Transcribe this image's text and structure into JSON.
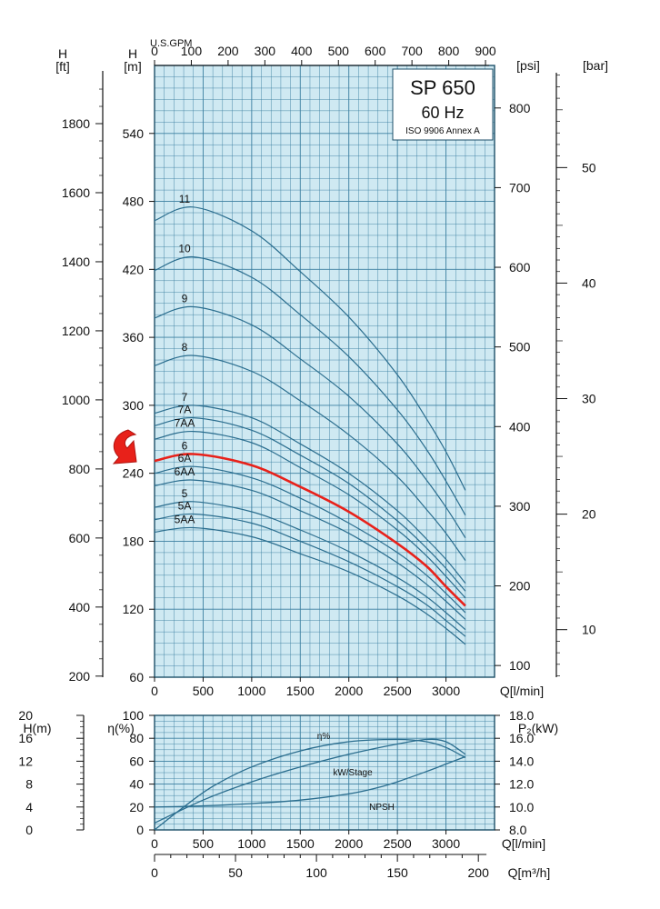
{
  "chart_data": [
    {
      "type": "line",
      "title": "SP 650",
      "subtitle": "60 Hz",
      "note": "ISO 9906 Annex A",
      "xlabel": "Q[l/min]",
      "x_ticks": [
        0,
        500,
        1000,
        1500,
        2000,
        2500,
        3000
      ],
      "xlim": [
        0,
        3500
      ],
      "top_axis": {
        "label": "U.S.GPM",
        "ticks": [
          0,
          100,
          200,
          300,
          400,
          500,
          600,
          700,
          800,
          900
        ]
      },
      "ylabel": "[m]",
      "y_header": "H",
      "ylim": [
        60,
        600
      ],
      "y_ticks": [
        60,
        120,
        180,
        240,
        300,
        360,
        420,
        480,
        540
      ],
      "left_axis_ft": {
        "header": "H",
        "label": "[ft]",
        "ticks": [
          200,
          400,
          600,
          800,
          1000,
          1200,
          1400,
          1600,
          1800
        ]
      },
      "right_axis_psi": {
        "label": "[psi]",
        "ticks": [
          100,
          200,
          300,
          400,
          500,
          600,
          700,
          800
        ]
      },
      "right_axis_bar": {
        "label": "[bar]",
        "ticks": [
          10,
          20,
          30,
          40,
          50
        ]
      },
      "highlight_color": "#e8211a",
      "curve_color": "#2a6d8e",
      "grid_color": "#3b7fa0",
      "background_color": "#cfe9f2",
      "grid": true,
      "highlighted_series": "6",
      "series": [
        {
          "name": "11",
          "x": [
            0,
            400,
            1000,
            1500,
            2000,
            2500,
            2800,
            3000,
            3200
          ],
          "y": [
            463,
            475,
            454,
            418,
            378,
            327,
            288,
            259,
            225
          ]
        },
        {
          "name": "10",
          "x": [
            0,
            400,
            1000,
            1500,
            2000,
            2500,
            2800,
            3000,
            3200
          ],
          "y": [
            419,
            431,
            413,
            380,
            343,
            296,
            261,
            233,
            203
          ]
        },
        {
          "name": "9",
          "x": [
            0,
            400,
            1000,
            1500,
            2000,
            2500,
            2800,
            3000,
            3200
          ],
          "y": [
            377,
            387,
            371,
            341,
            308,
            266,
            234,
            210,
            183
          ]
        },
        {
          "name": "8",
          "x": [
            0,
            400,
            1000,
            1500,
            2000,
            2500,
            2800,
            3000,
            3200
          ],
          "y": [
            335,
            344,
            330,
            304,
            274,
            237,
            208,
            187,
            163
          ]
        },
        {
          "name": "7",
          "x": [
            0,
            400,
            1000,
            1500,
            2000,
            2500,
            2800,
            3000,
            3200
          ],
          "y": [
            293,
            300,
            289,
            266,
            240,
            207,
            182,
            164,
            143
          ]
        },
        {
          "name": "7A",
          "x": [
            0,
            400,
            1000,
            1500,
            2000,
            2500,
            2800,
            3000,
            3200
          ],
          "y": [
            282,
            289,
            278,
            256,
            231,
            198,
            174,
            156,
            136
          ]
        },
        {
          "name": "7AA",
          "x": [
            0,
            400,
            1000,
            1500,
            2000,
            2500,
            2800,
            3000,
            3200
          ],
          "y": [
            270,
            277,
            267,
            245,
            221,
            190,
            167,
            149,
            130
          ]
        },
        {
          "name": "6",
          "x": [
            0,
            400,
            1000,
            1500,
            2000,
            2500,
            2800,
            3000,
            3200
          ],
          "y": [
            251,
            257,
            247,
            228,
            206,
            178,
            158,
            140,
            123
          ]
        },
        {
          "name": "6A",
          "x": [
            0,
            400,
            1000,
            1500,
            2000,
            2500,
            2800,
            3000,
            3200
          ],
          "y": [
            240,
            246,
            236,
            218,
            196,
            170,
            150,
            134,
            117
          ]
        },
        {
          "name": "6AA",
          "x": [
            0,
            400,
            1000,
            1500,
            2000,
            2500,
            2800,
            3000,
            3200
          ],
          "y": [
            229,
            234,
            225,
            207,
            187,
            161,
            142,
            127,
            111
          ]
        },
        {
          "name": "5",
          "x": [
            0,
            400,
            1000,
            1500,
            2000,
            2500,
            2800,
            3000,
            3200
          ],
          "y": [
            210,
            215,
            206,
            190,
            171,
            148,
            131,
            117,
            102
          ]
        },
        {
          "name": "5A",
          "x": [
            0,
            400,
            1000,
            1500,
            2000,
            2500,
            2800,
            3000,
            3200
          ],
          "y": [
            199,
            204,
            196,
            180,
            162,
            140,
            124,
            110,
            96
          ]
        },
        {
          "name": "5AA",
          "x": [
            0,
            400,
            1000,
            1500,
            2000,
            2500,
            2800,
            3000,
            3200
          ],
          "y": [
            188,
            192,
            184,
            169,
            153,
            132,
            116,
            103,
            89
          ]
        }
      ]
    },
    {
      "type": "line",
      "xlabel": "Q[l/min]",
      "x_ticks": [
        0,
        500,
        1000,
        1500,
        2000,
        2500,
        3000
      ],
      "xlim": [
        0,
        3500
      ],
      "bottom_axis_m3h": {
        "label": "Q[m³/h]",
        "ticks": [
          0,
          50,
          100,
          150,
          200
        ]
      },
      "ylabel_eta": "η(%)",
      "ylim_eta": [
        0,
        100
      ],
      "eta_ticks": [
        0,
        20,
        40,
        60,
        80,
        100
      ],
      "ylabel_h": "H(m)",
      "h_ticks": [
        0,
        4,
        8,
        12,
        16,
        20
      ],
      "ylabel_p2": "P₂(kW)",
      "p2_ticks": [
        "8.0",
        "10.0",
        "12.0",
        "14.0",
        "16.0",
        "18.0"
      ],
      "grid": true,
      "series": [
        {
          "name": "η%",
          "x": [
            0,
            300,
            600,
            1000,
            1500,
            2000,
            2500,
            2800,
            3000,
            3200
          ],
          "y": [
            0,
            20,
            38,
            55,
            69,
            77,
            79,
            77,
            72,
            63
          ]
        },
        {
          "name": "kW/Stage",
          "x": [
            0,
            500,
            1000,
            1500,
            2000,
            2500,
            2800,
            3000,
            3200
          ],
          "y": [
            8.6,
            10.6,
            12.2,
            13.5,
            14.6,
            15.5,
            15.9,
            15.7,
            14.6
          ]
        },
        {
          "name": "NPSH",
          "x": [
            0,
            500,
            1000,
            1500,
            2000,
            2300,
            2500,
            2800,
            3000,
            3200
          ],
          "y": [
            4.0,
            4.2,
            4.6,
            5.2,
            6.3,
            7.4,
            8.4,
            10.2,
            11.5,
            12.8
          ]
        }
      ]
    }
  ]
}
